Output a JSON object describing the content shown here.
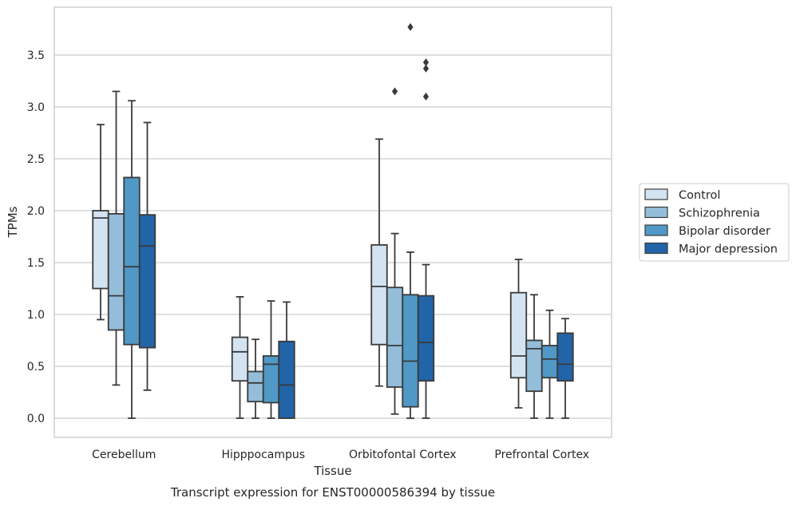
{
  "caption": "Transcript expression for ENST00000586394 by tissue",
  "chart_data": {
    "type": "box",
    "title": "",
    "xlabel": "Tissue",
    "ylabel": "TPMs",
    "ylim": [
      -0.18,
      3.95
    ],
    "yticks": [
      "0.0",
      "0.5",
      "1.0",
      "1.5",
      "2.0",
      "2.5",
      "3.0",
      "3.5"
    ],
    "grid": "horizontal",
    "legend_position": "right-outside",
    "categories": [
      "Cerebellum",
      "Hipppocampus",
      "Orbitofontal Cortex",
      "Prefrontal Cortex"
    ],
    "series": [
      {
        "name": "Control",
        "color": "#d3e3f1",
        "boxes": [
          {
            "whislo": 0.95,
            "q1": 1.25,
            "med": 1.93,
            "q3": 2.0,
            "whishi": 2.83,
            "fliers": []
          },
          {
            "whislo": 0.0,
            "q1": 0.36,
            "med": 0.64,
            "q3": 0.78,
            "whishi": 1.17,
            "fliers": []
          },
          {
            "whislo": 0.31,
            "q1": 0.71,
            "med": 1.27,
            "q3": 1.67,
            "whishi": 2.69,
            "fliers": []
          },
          {
            "whislo": 0.1,
            "q1": 0.39,
            "med": 0.6,
            "q3": 1.21,
            "whishi": 1.53,
            "fliers": []
          }
        ]
      },
      {
        "name": "Schizophrenia",
        "color": "#94bdd9",
        "boxes": [
          {
            "whislo": 0.32,
            "q1": 0.85,
            "med": 1.18,
            "q3": 1.97,
            "whishi": 3.15,
            "fliers": []
          },
          {
            "whislo": 0.0,
            "q1": 0.16,
            "med": 0.34,
            "q3": 0.45,
            "whishi": 0.76,
            "fliers": []
          },
          {
            "whislo": 0.04,
            "q1": 0.3,
            "med": 0.7,
            "q3": 1.26,
            "whishi": 1.78,
            "fliers": [
              3.15
            ]
          },
          {
            "whislo": 0.0,
            "q1": 0.26,
            "med": 0.67,
            "q3": 0.75,
            "whishi": 1.19,
            "fliers": []
          }
        ]
      },
      {
        "name": "Bipolar disorder",
        "color": "#5098c6",
        "boxes": [
          {
            "whislo": 0.0,
            "q1": 0.71,
            "med": 1.46,
            "q3": 2.32,
            "whishi": 3.06,
            "fliers": []
          },
          {
            "whislo": 0.0,
            "q1": 0.15,
            "med": 0.52,
            "q3": 0.6,
            "whishi": 1.13,
            "fliers": []
          },
          {
            "whislo": 0.0,
            "q1": 0.11,
            "med": 0.55,
            "q3": 1.19,
            "whishi": 1.6,
            "fliers": [
              3.77
            ]
          },
          {
            "whislo": 0.0,
            "q1": 0.39,
            "med": 0.57,
            "q3": 0.7,
            "whishi": 1.04,
            "fliers": []
          }
        ]
      },
      {
        "name": "Major depression",
        "color": "#2264a8",
        "boxes": [
          {
            "whislo": 0.27,
            "q1": 0.68,
            "med": 1.66,
            "q3": 1.96,
            "whishi": 2.85,
            "fliers": []
          },
          {
            "whislo": 0.0,
            "q1": 0.0,
            "med": 0.32,
            "q3": 0.74,
            "whishi": 1.12,
            "fliers": []
          },
          {
            "whislo": 0.0,
            "q1": 0.36,
            "med": 0.73,
            "q3": 1.18,
            "whishi": 1.48,
            "fliers": [
              3.1,
              3.37,
              3.43
            ]
          },
          {
            "whislo": 0.0,
            "q1": 0.36,
            "med": 0.52,
            "q3": 0.82,
            "whishi": 0.96,
            "fliers": []
          }
        ]
      }
    ]
  }
}
